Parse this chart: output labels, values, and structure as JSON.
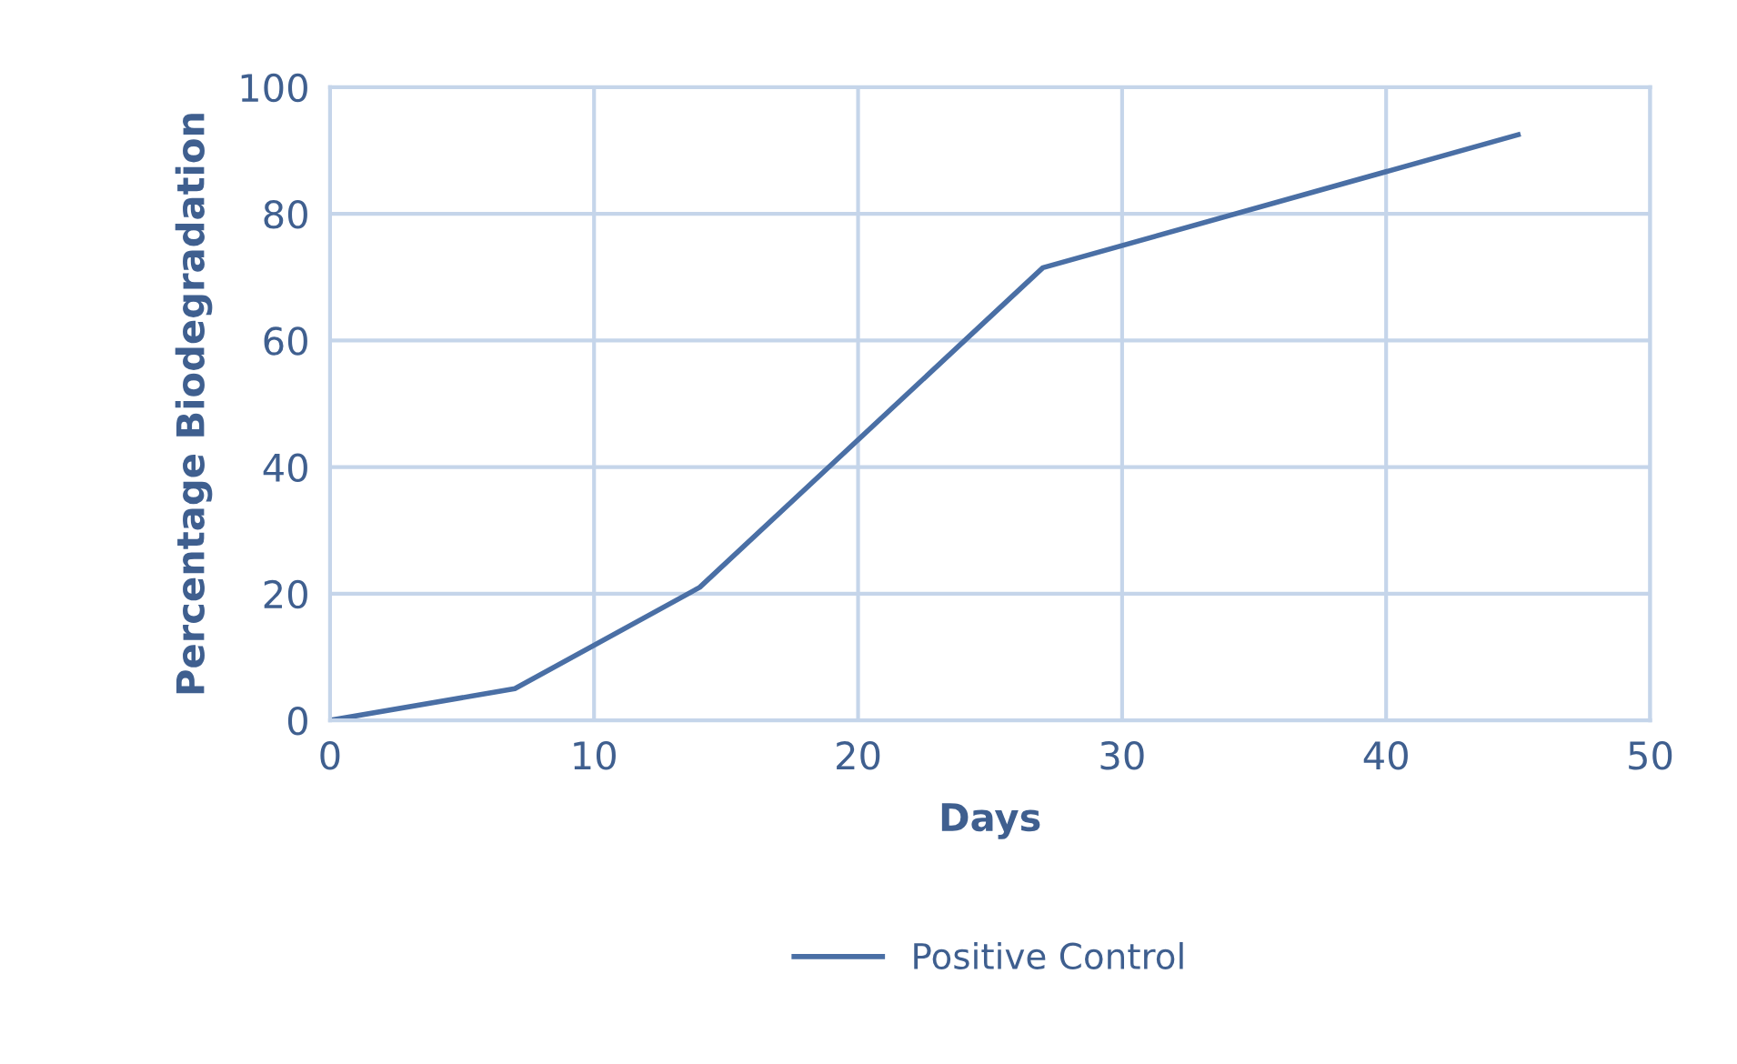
{
  "chart_data": {
    "type": "line",
    "xlabel": "Days",
    "ylabel": "Percentage Biodegradation",
    "x": [
      0,
      7,
      14,
      27,
      45
    ],
    "series": [
      {
        "name": "Positive Control",
        "color": "#4a6fa5",
        "values": [
          0,
          5,
          21,
          71.5,
          92.5
        ]
      }
    ],
    "xlim": [
      0,
      50
    ],
    "ylim": [
      0,
      100
    ],
    "xticks": [
      0,
      10,
      20,
      30,
      40,
      50
    ],
    "yticks": [
      0,
      20,
      40,
      60,
      80,
      100
    ],
    "grid": true,
    "legend": "bottom",
    "marker": "none",
    "line_style": "solid"
  }
}
